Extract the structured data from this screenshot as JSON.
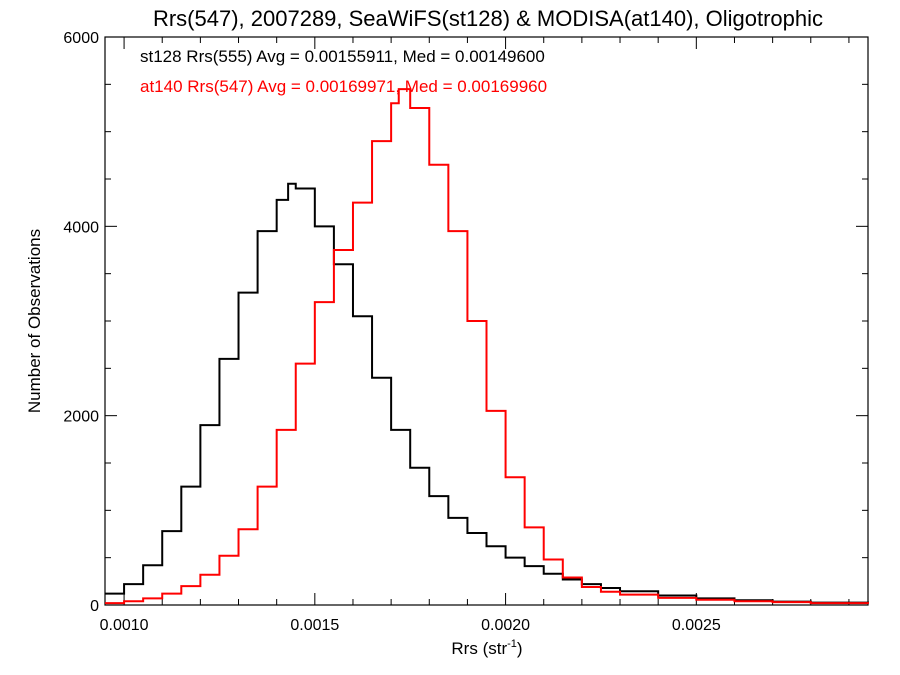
{
  "chart_data": {
    "type": "line",
    "title": "Rrs(547), 2007289, SeaWiFS(st128) & MODISA(at140), Oligotrophic",
    "xlabel": "Rrs (str",
    "xlabel_sup": "-1",
    "xlabel_close": ")",
    "ylabel": "Number of Observations",
    "xlim": [
      0.00095,
      0.00295
    ],
    "ylim": [
      0,
      6000
    ],
    "x_ticks": [
      0.001,
      0.0015,
      0.002,
      0.0025
    ],
    "x_tick_labels": [
      "0.0010",
      "0.0015",
      "0.0020",
      "0.0025"
    ],
    "y_ticks": [
      0,
      2000,
      4000,
      6000
    ],
    "y_tick_labels": [
      "0",
      "2000",
      "4000",
      "6000"
    ],
    "grid": false,
    "legend": [
      "st128 Rrs(555) Avg = 0.00155911, Med = 0.00149600",
      "at140 Rrs(547) Avg = 0.00169971, Med = 0.00169960"
    ],
    "series": [
      {
        "color": "#000000",
        "points": [
          [
            0.00095,
            120
          ],
          [
            0.001,
            220
          ],
          [
            0.00105,
            420
          ],
          [
            0.0011,
            780
          ],
          [
            0.00115,
            1250
          ],
          [
            0.0012,
            1900
          ],
          [
            0.00125,
            2600
          ],
          [
            0.0013,
            3300
          ],
          [
            0.00135,
            3950
          ],
          [
            0.0014,
            4280
          ],
          [
            0.00143,
            4450
          ],
          [
            0.00145,
            4400
          ],
          [
            0.0015,
            4000
          ],
          [
            0.00155,
            3600
          ],
          [
            0.0016,
            3050
          ],
          [
            0.00165,
            2400
          ],
          [
            0.0017,
            1850
          ],
          [
            0.00175,
            1450
          ],
          [
            0.0018,
            1150
          ],
          [
            0.00185,
            920
          ],
          [
            0.0019,
            760
          ],
          [
            0.00195,
            620
          ],
          [
            0.002,
            500
          ],
          [
            0.00205,
            410
          ],
          [
            0.0021,
            330
          ],
          [
            0.00215,
            270
          ],
          [
            0.0022,
            220
          ],
          [
            0.00225,
            180
          ],
          [
            0.0023,
            145
          ],
          [
            0.0024,
            100
          ],
          [
            0.0025,
            70
          ],
          [
            0.0026,
            50
          ],
          [
            0.0027,
            35
          ],
          [
            0.0028,
            25
          ],
          [
            0.00295,
            15
          ]
        ]
      },
      {
        "color": "#ff0000",
        "points": [
          [
            0.00095,
            20
          ],
          [
            0.001,
            40
          ],
          [
            0.00105,
            70
          ],
          [
            0.0011,
            120
          ],
          [
            0.00115,
            200
          ],
          [
            0.0012,
            320
          ],
          [
            0.00125,
            520
          ],
          [
            0.0013,
            800
          ],
          [
            0.00135,
            1250
          ],
          [
            0.0014,
            1850
          ],
          [
            0.00145,
            2550
          ],
          [
            0.0015,
            3200
          ],
          [
            0.00155,
            3750
          ],
          [
            0.0016,
            4250
          ],
          [
            0.00165,
            4900
          ],
          [
            0.0017,
            5300
          ],
          [
            0.00172,
            5450
          ],
          [
            0.00175,
            5250
          ],
          [
            0.0018,
            4650
          ],
          [
            0.00185,
            3950
          ],
          [
            0.0019,
            3000
          ],
          [
            0.00195,
            2050
          ],
          [
            0.002,
            1350
          ],
          [
            0.00205,
            820
          ],
          [
            0.0021,
            480
          ],
          [
            0.00215,
            290
          ],
          [
            0.0022,
            190
          ],
          [
            0.00225,
            140
          ],
          [
            0.0023,
            110
          ],
          [
            0.0024,
            75
          ],
          [
            0.0025,
            55
          ],
          [
            0.0026,
            40
          ],
          [
            0.0027,
            30
          ],
          [
            0.0028,
            20
          ],
          [
            0.00295,
            12
          ]
        ]
      }
    ]
  }
}
